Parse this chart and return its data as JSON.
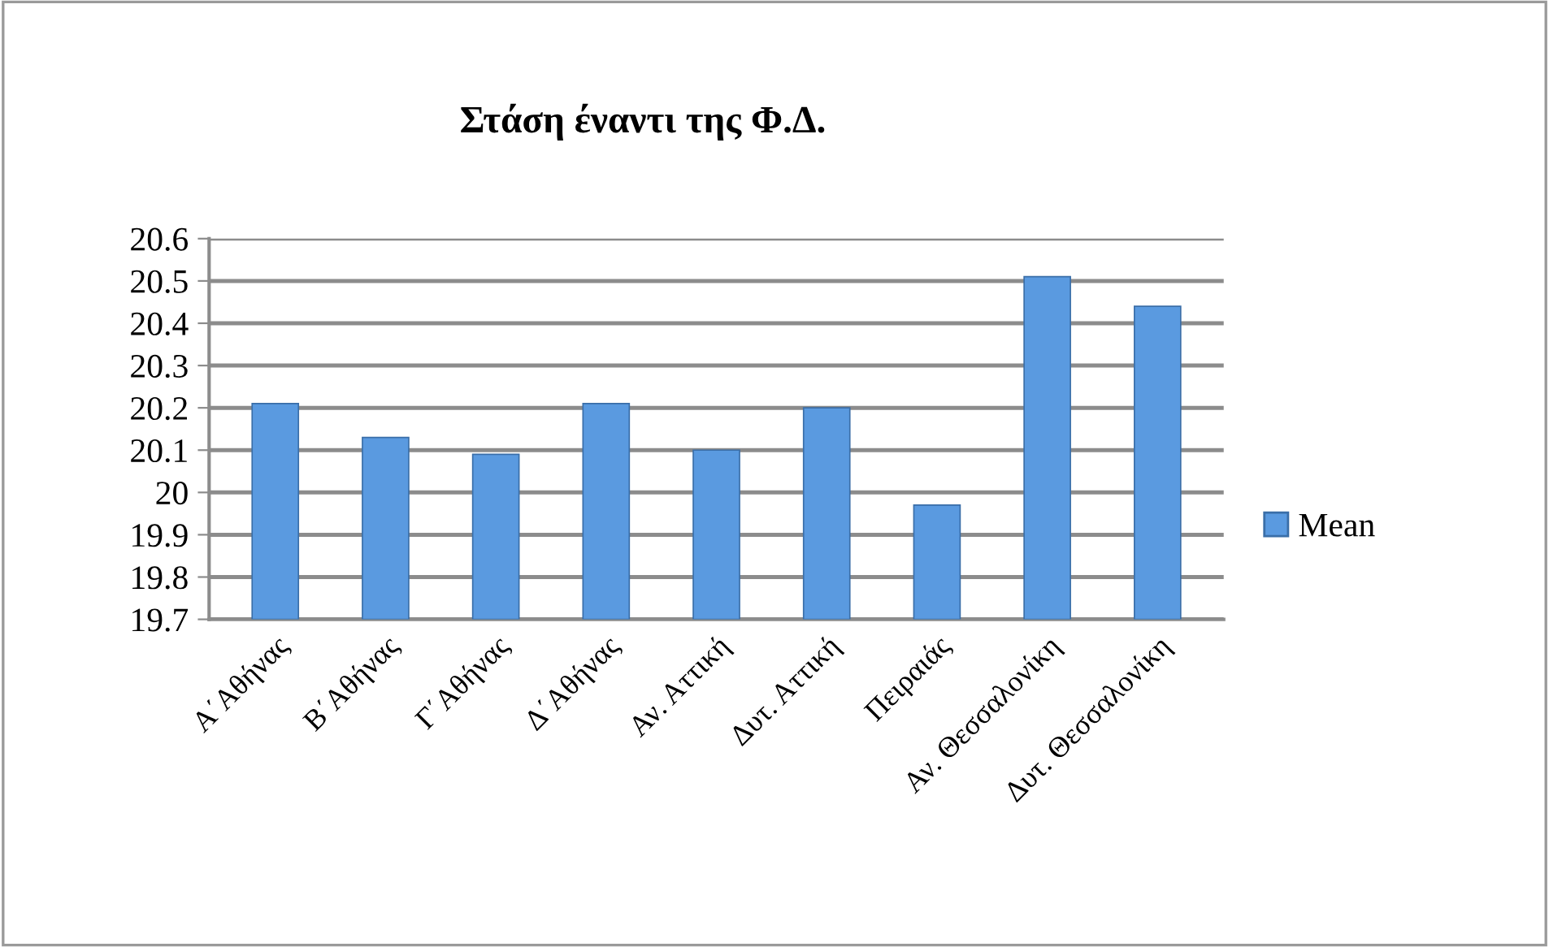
{
  "chart_data": {
    "type": "bar",
    "title": "Στάση έναντι της Φ.Δ.",
    "categories": [
      "Α΄Αθήνας",
      "Β΄Αθήνας",
      "Γ΄Αθήνας",
      "Δ΄Αθήνας",
      "Αν. Αττική",
      "Δυτ. Αττική",
      "Πειραιάς",
      "Αν. Θεσσαλονίκη",
      "Δυτ. Θεσσαλονίκη"
    ],
    "series": [
      {
        "name": "Mean",
        "color": "#5a9ae0",
        "values": [
          20.21,
          20.13,
          20.09,
          20.21,
          20.1,
          20.2,
          19.97,
          20.51,
          20.44
        ]
      }
    ],
    "ylim": [
      19.7,
      20.6
    ],
    "yticks": [
      19.7,
      19.8,
      19.9,
      20,
      20.1,
      20.2,
      20.3,
      20.4,
      20.5,
      20.6
    ],
    "grid": "y",
    "legend": "right"
  }
}
